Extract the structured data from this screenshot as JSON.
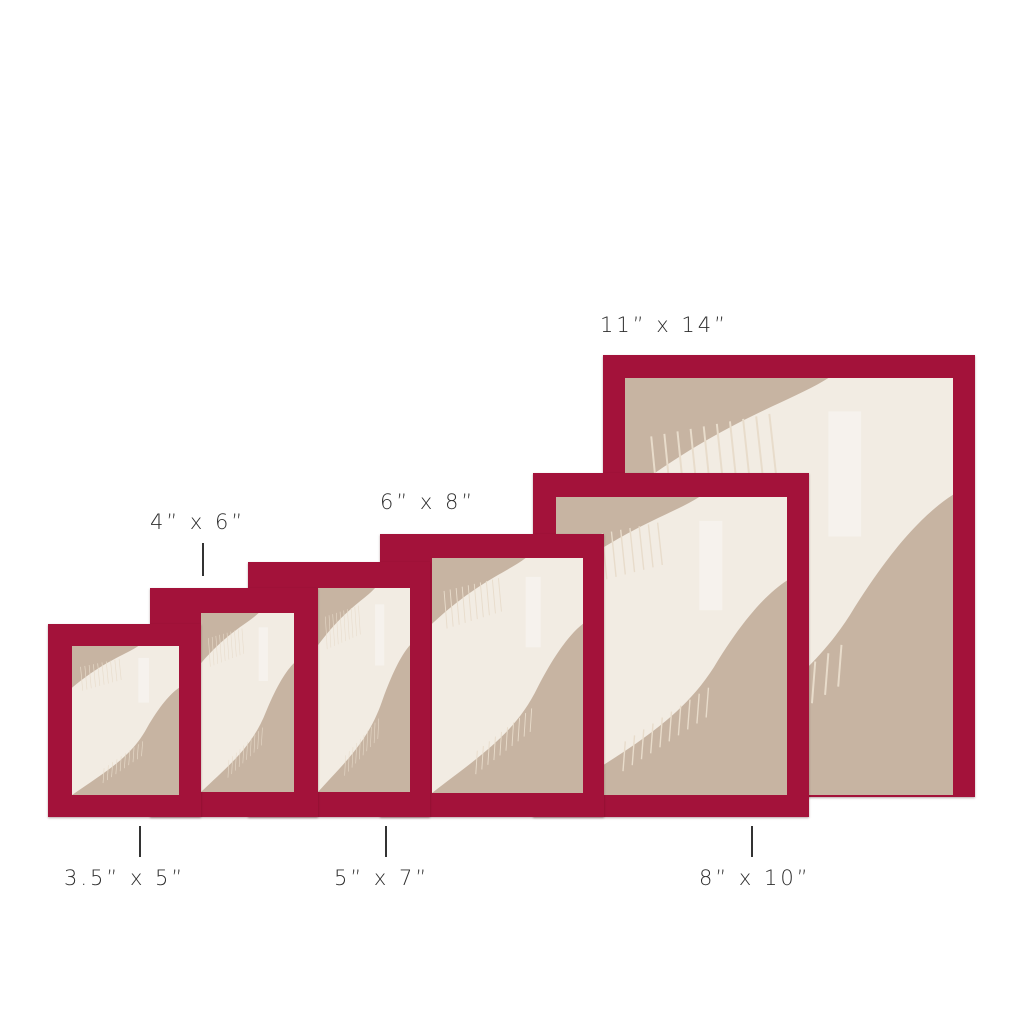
{
  "frame_color": "#a3123a",
  "artwork_colors": {
    "tan": "#c7b4a2",
    "cream": "#f2ece3"
  },
  "sizes": [
    {
      "label": "11” x 14”"
    },
    {
      "label": "8” x 10”"
    },
    {
      "label": "6” x 8”"
    },
    {
      "label": "5” x 7”"
    },
    {
      "label": "4” x 6”"
    },
    {
      "label": "3.5” x 5”"
    }
  ]
}
